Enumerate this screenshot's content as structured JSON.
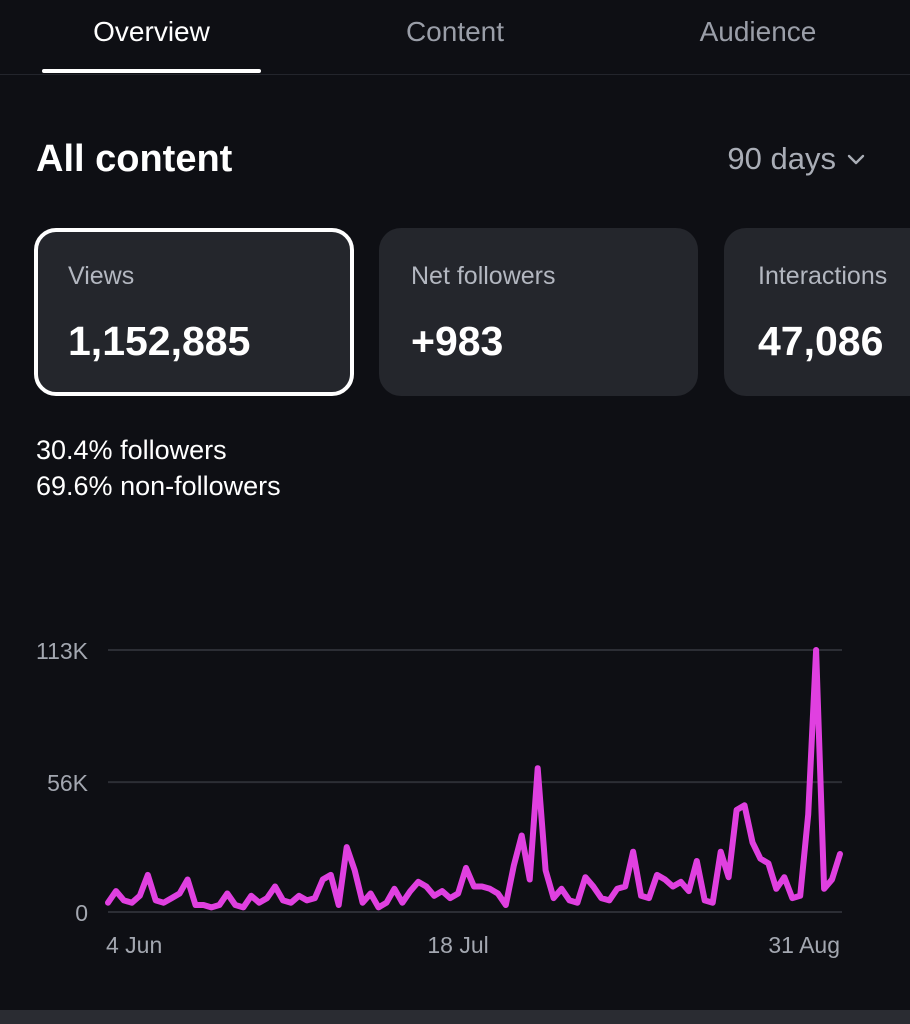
{
  "tabs": [
    {
      "label": "Overview",
      "active": true
    },
    {
      "label": "Content",
      "active": false
    },
    {
      "label": "Audience",
      "active": false
    }
  ],
  "section": {
    "title": "All content",
    "range_label": "90 days"
  },
  "metrics": [
    {
      "label": "Views",
      "value": "1,152,885",
      "selected": true
    },
    {
      "label": "Net followers",
      "value": "+983",
      "selected": false
    },
    {
      "label": "Interactions",
      "value": "47,086",
      "selected": false
    }
  ],
  "breakdown": {
    "followers_pct": "30.4%",
    "followers_label": "followers",
    "non_followers_pct": "69.6%",
    "non_followers_label": "non-followers"
  },
  "chart_data": {
    "type": "line",
    "series_color": "#e040e0",
    "y_ticks": [
      "113K",
      "56K",
      "0"
    ],
    "y_tick_values": [
      113000,
      56000,
      0
    ],
    "ylim": [
      0,
      113000
    ],
    "x_ticks": [
      {
        "label": "4 Jun",
        "index": 0
      },
      {
        "label": "18 Jul",
        "index": 44
      },
      {
        "label": "31 Aug",
        "index": 88
      }
    ],
    "values": [
      4000,
      9000,
      5000,
      4000,
      7000,
      16000,
      5000,
      4000,
      6000,
      8000,
      14000,
      3000,
      3000,
      2000,
      3000,
      8000,
      3000,
      2000,
      7000,
      4000,
      6000,
      11000,
      5000,
      4000,
      7000,
      5000,
      6000,
      14000,
      16000,
      3000,
      28000,
      18000,
      4000,
      8000,
      2000,
      4000,
      10000,
      4000,
      9000,
      13000,
      11000,
      7000,
      9000,
      6000,
      8000,
      19000,
      11000,
      11000,
      10000,
      8000,
      3000,
      20000,
      33000,
      14000,
      62000,
      18000,
      6000,
      10000,
      5000,
      4000,
      15000,
      11000,
      6000,
      5000,
      10000,
      11000,
      26000,
      7000,
      6000,
      16000,
      14000,
      11000,
      13000,
      9000,
      22000,
      5000,
      4000,
      26000,
      15000,
      44000,
      46000,
      30000,
      23000,
      21000,
      10000,
      15000,
      6000,
      7000,
      42000,
      113000,
      10000,
      14000,
      25000
    ]
  }
}
